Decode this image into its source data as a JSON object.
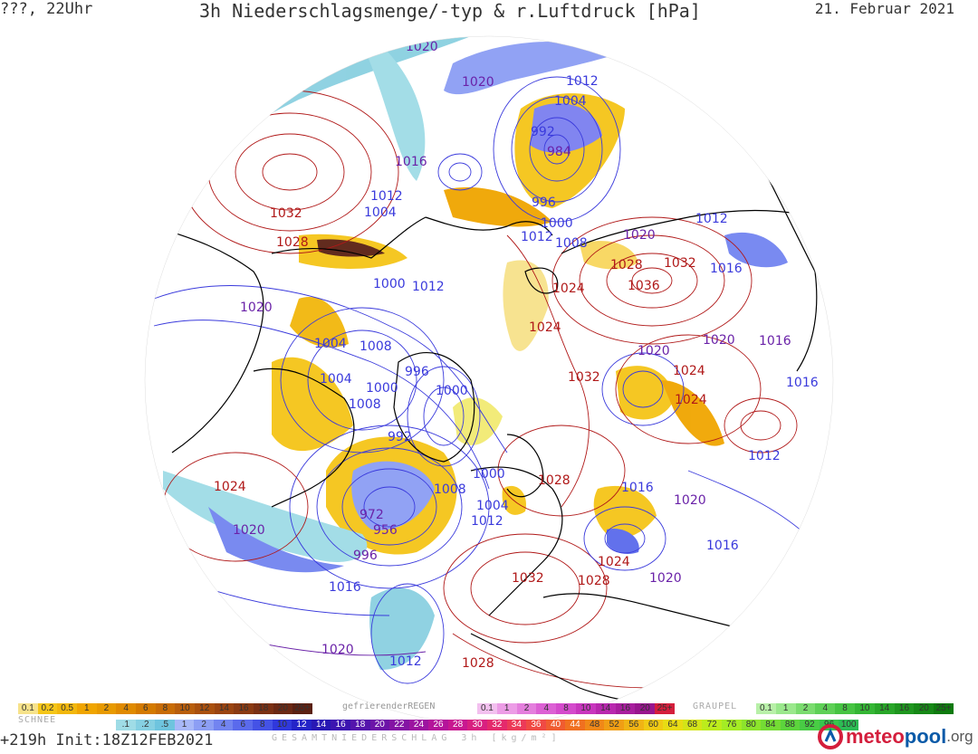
{
  "header": {
    "left": "???, 22Uhr",
    "title": "3h Niederschlagsmenge/-typ & r.Luftdruck [hPa]",
    "date": "21. Februar 2021"
  },
  "footer": {
    "forecast": "+219h  Init:18Z12FEB2021"
  },
  "brand": {
    "prefix": "meteo",
    "pool": "pool",
    "tld": ".org",
    "logo_color": "#d41e3c"
  },
  "colors": {
    "land_fill": "#ffffff",
    "coast": "#000000",
    "low_isobar": "#3a3adc",
    "high_isobar": "#b01818",
    "mid_isobar": "#6a22a8",
    "snow": "#f5c518",
    "rain": "#8899ee",
    "mixed": "#8ad0e0"
  },
  "legends": {
    "schnee": {
      "label": "SCHNEE",
      "values": [
        "0.1",
        "0.2",
        "0.5",
        "1",
        "2",
        "4",
        "6",
        "8",
        "10",
        "12",
        "14",
        "16",
        "18",
        "20",
        "25+"
      ],
      "colors": [
        "#f7e28a",
        "#f5c518",
        "#f2b70c",
        "#f0a500",
        "#e89a00",
        "#e08a00",
        "#d47a00",
        "#c86c06",
        "#b85e0c",
        "#a9500e",
        "#9a4410",
        "#8a3a12",
        "#7a3014",
        "#6a2814",
        "#5a2012"
      ]
    },
    "regen": {
      "label": "gefrierenderREGEN",
      "values": [
        "0.1",
        "1",
        "2",
        "4",
        "8",
        "10",
        "14",
        "16",
        "20",
        "25+"
      ],
      "colors": [
        "#f3c0ef",
        "#ec9ce6",
        "#e47edd",
        "#dc60d4",
        "#d44acc",
        "#c836be",
        "#b828ae",
        "#a81e9e",
        "#98168e",
        "#d41e3c"
      ]
    },
    "graupel": {
      "label": "GRAUPEL",
      "values": [
        "0.1",
        "1",
        "2",
        "4",
        "8",
        "10",
        "14",
        "16",
        "20",
        "25+"
      ],
      "colors": [
        "#b8f0a8",
        "#9ae88c",
        "#7adc6e",
        "#5ed056",
        "#46c442",
        "#34b634",
        "#28a628",
        "#1e961e",
        "#168816",
        "#0e7a0e"
      ]
    },
    "gesamt": {
      "label": "GESAMTNIEDERSCHLAG 3h [kg/m²]",
      "values": [
        ".1",
        ".2",
        ".5",
        "1",
        "2",
        "4",
        "6",
        "8",
        "10",
        "12",
        "14",
        "16",
        "18",
        "20",
        "22",
        "24",
        "26",
        "28",
        "30",
        "32",
        "34",
        "36",
        "40",
        "44",
        "48",
        "52",
        "56",
        "60",
        "64",
        "68",
        "72",
        "76",
        "80",
        "84",
        "88",
        "92",
        "96",
        "100"
      ],
      "colors": [
        "#9fdce6",
        "#86d0e2",
        "#6ec4de",
        "#a8b8f8",
        "#8c9ef4",
        "#7284f0",
        "#5a6aec",
        "#4452e6",
        "#3038dc",
        "#2424c8",
        "#2818b4",
        "#3c14b0",
        "#5414ac",
        "#6c14a8",
        "#8414a4",
        "#9c14a0",
        "#b4149a",
        "#c81890",
        "#d82080",
        "#e42a6c",
        "#ec3a58",
        "#f04a44",
        "#f05c30",
        "#f07020",
        "#f08818",
        "#f09e14",
        "#f0b414",
        "#f0ca14",
        "#e8dc14",
        "#d4e418",
        "#bcec1c",
        "#a4ec24",
        "#8ce42c",
        "#74dc34",
        "#5cd43c",
        "#48cc44",
        "#38c44c",
        "#2cbc54"
      ]
    }
  },
  "pressure_labels": [
    {
      "text": "1020",
      "kind": "mid"
    },
    {
      "text": "1016",
      "kind": "mid"
    },
    {
      "text": "1020",
      "kind": "mid"
    },
    {
      "text": "1012",
      "kind": "low"
    },
    {
      "text": "1004",
      "kind": "low"
    },
    {
      "text": "992",
      "kind": "low"
    },
    {
      "text": "984",
      "kind": "mid"
    },
    {
      "text": "1016",
      "kind": "mid"
    },
    {
      "text": "996",
      "kind": "low"
    },
    {
      "text": "1000",
      "kind": "low"
    },
    {
      "text": "1012",
      "kind": "low"
    },
    {
      "text": "1008",
      "kind": "low"
    },
    {
      "text": "1020",
      "kind": "mid"
    },
    {
      "text": "1012",
      "kind": "low"
    },
    {
      "text": "1012",
      "kind": "low"
    },
    {
      "text": "1004",
      "kind": "low"
    },
    {
      "text": "1032",
      "kind": "high"
    },
    {
      "text": "1028",
      "kind": "high"
    },
    {
      "text": "1028",
      "kind": "high"
    },
    {
      "text": "1032",
      "kind": "high"
    },
    {
      "text": "1016",
      "kind": "low"
    },
    {
      "text": "1036",
      "kind": "high"
    },
    {
      "text": "1000",
      "kind": "low"
    },
    {
      "text": "1012",
      "kind": "low"
    },
    {
      "text": "1024",
      "kind": "high"
    },
    {
      "text": "1020",
      "kind": "mid"
    },
    {
      "text": "1024",
      "kind": "high"
    },
    {
      "text": "1004",
      "kind": "low"
    },
    {
      "text": "1008",
      "kind": "low"
    },
    {
      "text": "1020",
      "kind": "mid"
    },
    {
      "text": "1020",
      "kind": "mid"
    },
    {
      "text": "1016",
      "kind": "low"
    },
    {
      "text": "1004",
      "kind": "low"
    },
    {
      "text": "996",
      "kind": "low"
    },
    {
      "text": "1024",
      "kind": "high"
    },
    {
      "text": "1000",
      "kind": "low"
    },
    {
      "text": "1000",
      "kind": "low"
    },
    {
      "text": "1032",
      "kind": "high"
    },
    {
      "text": "1016",
      "kind": "low"
    },
    {
      "text": "1008",
      "kind": "low"
    },
    {
      "text": "1024",
      "kind": "high"
    },
    {
      "text": "992",
      "kind": "low"
    },
    {
      "text": "1012",
      "kind": "low"
    },
    {
      "text": "1024",
      "kind": "high"
    },
    {
      "text": "1000",
      "kind": "low"
    },
    {
      "text": "1028",
      "kind": "high"
    },
    {
      "text": "1008",
      "kind": "low"
    },
    {
      "text": "1016",
      "kind": "low"
    },
    {
      "text": "1004",
      "kind": "low"
    },
    {
      "text": "1020",
      "kind": "mid"
    },
    {
      "text": "972",
      "kind": "mid"
    },
    {
      "text": "1012",
      "kind": "low"
    },
    {
      "text": "956",
      "kind": "mid"
    },
    {
      "text": "1020",
      "kind": "mid"
    },
    {
      "text": "996",
      "kind": "mid"
    },
    {
      "text": "1016",
      "kind": "low"
    },
    {
      "text": "1024",
      "kind": "high"
    },
    {
      "text": "1032",
      "kind": "high"
    },
    {
      "text": "1028",
      "kind": "high"
    },
    {
      "text": "1020",
      "kind": "mid"
    },
    {
      "text": "1016",
      "kind": "low"
    },
    {
      "text": "1020",
      "kind": "mid"
    },
    {
      "text": "1012",
      "kind": "low"
    },
    {
      "text": "1028",
      "kind": "high"
    }
  ]
}
